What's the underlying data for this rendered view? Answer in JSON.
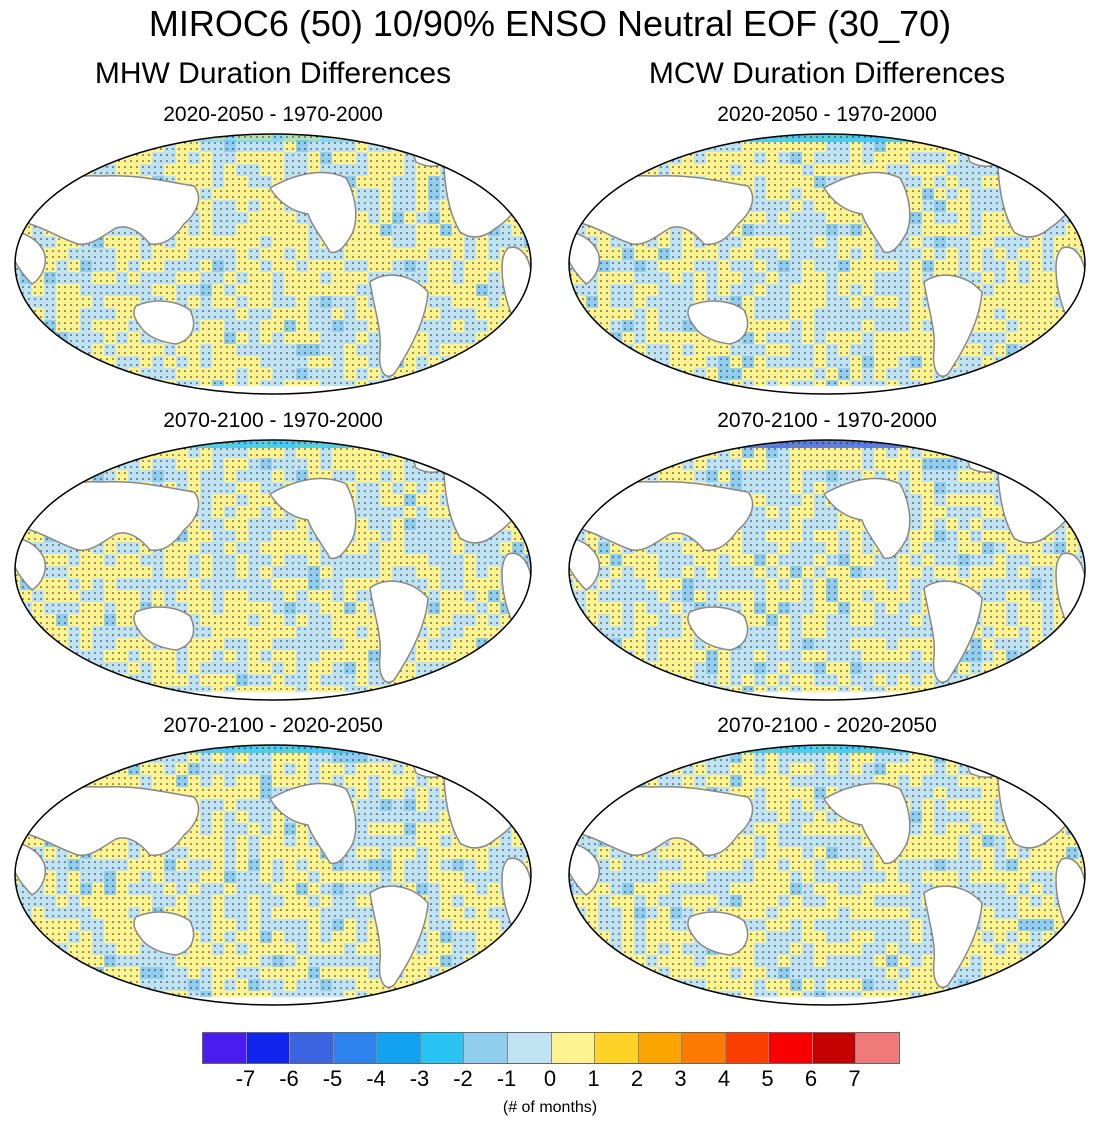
{
  "title": "MIROC6 (50) 10/90% ENSO Neutral EOF (30_70)",
  "columns": [
    {
      "title": "MHW Duration Differences"
    },
    {
      "title": "MCW Duration Differences"
    }
  ],
  "panels": [
    {
      "title": "2020-2050 - 1970-2000",
      "column": "MHW"
    },
    {
      "title": "2020-2050 - 1970-2000",
      "column": "MCW"
    },
    {
      "title": "2070-2100 - 1970-2000",
      "column": "MHW"
    },
    {
      "title": "2070-2100 - 1970-2000",
      "column": "MCW"
    },
    {
      "title": "2070-2100 - 2020-2050",
      "column": "MHW"
    },
    {
      "title": "2070-2100 - 2020-2050",
      "column": "MCW"
    }
  ],
  "colorbar": {
    "colors": [
      "#4b1cf0",
      "#0f24ec",
      "#3c64e0",
      "#2e82ee",
      "#13a2f2",
      "#2ac4f4",
      "#90cdee",
      "#bfe3f3",
      "#fdf391",
      "#fdd327",
      "#fca500",
      "#fc7a00",
      "#fc3d00",
      "#f90000",
      "#c40000",
      "#f07a7a"
    ],
    "labels": [
      "-7",
      "-6",
      "-5",
      "-4",
      "-3",
      "-2",
      "-1",
      "0",
      "1",
      "2",
      "3",
      "4",
      "5",
      "6",
      "7"
    ],
    "units": "(# of months)"
  }
}
